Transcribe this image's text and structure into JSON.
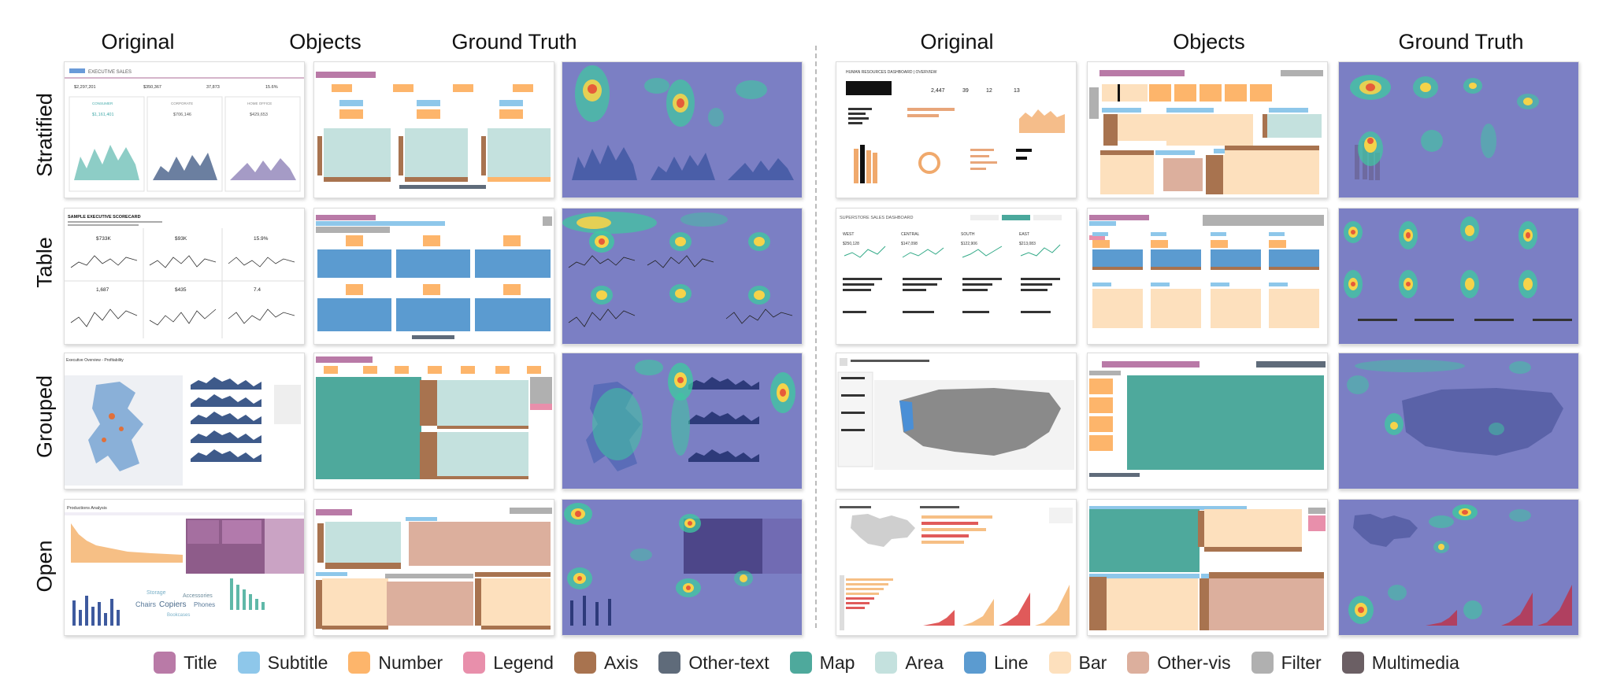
{
  "columns": [
    "Original",
    "Objects",
    "Ground Truth",
    "Original",
    "Objects",
    "Ground Truth"
  ],
  "rows": [
    "Stratified",
    "Table",
    "Grouped",
    "Open"
  ],
  "legend": [
    {
      "label": "Title",
      "color": "#b97aa7"
    },
    {
      "label": "Subtitle",
      "color": "#8ec7ea"
    },
    {
      "label": "Number",
      "color": "#fdb56b"
    },
    {
      "label": "Legend",
      "color": "#e88fab"
    },
    {
      "label": "Axis",
      "color": "#a8734f"
    },
    {
      "label": "Other-text",
      "color": "#5f6b7a"
    },
    {
      "label": "Map",
      "color": "#4ea99c"
    },
    {
      "label": "Area",
      "color": "#c4e1de"
    },
    {
      "label": "Line",
      "color": "#5b9bd0"
    },
    {
      "label": "Bar",
      "color": "#fde0bd"
    },
    {
      "label": "Other-vis",
      "color": "#dcaf9d"
    },
    {
      "label": "Filter",
      "color": "#b0b0b0"
    },
    {
      "label": "Multimedia",
      "color": "#6b5f64"
    }
  ],
  "thumbnail_text": {
    "s_left_title": "EXECUTIVE SALES",
    "s_left_n1": "$2,297,201",
    "s_left_n2": "$350,367",
    "s_left_n3": "37,873",
    "s_left_n4": "15.6%",
    "s_left_c1": "CONSUMER",
    "s_left_c2": "CORPORATE",
    "s_left_c3": "HOME OFFICE",
    "s_left_v1": "$1,161,401",
    "s_left_v2": "$706,146",
    "s_left_v3": "$429,653",
    "s_right_title": "HUMAN RESOURCES DASHBOARD | OVERVIEW",
    "s_right_n1": "2,447",
    "s_right_n2": "39",
    "s_right_n3": "12",
    "s_right_n4": "13",
    "t_left_title": "SAMPLE EXECUTIVE SCORECARD",
    "t_left_n1": "$733K",
    "t_left_n2": "$93K",
    "t_left_n3": "15.9%",
    "t_left_n4": "1,687",
    "t_left_n5": "$435",
    "t_left_n6": "7.4",
    "t_right_title": "SUPERSTORE SALES DASHBOARD",
    "t_right_r1": "WEST",
    "t_right_r2": "CENTRAL",
    "t_right_r3": "SOUTH",
    "t_right_r4": "EAST",
    "t_right_v1": "$250,128",
    "t_right_v2": "$147,098",
    "t_right_v3": "$122,906",
    "t_right_v4": "$213,083",
    "g_left_title": "Executive Overview - Profitability",
    "o_left_title": "Productions Analysis",
    "o_left_w1": "Storage",
    "o_left_w2": "Accessories",
    "o_left_w3": "Chairs",
    "o_left_w4": "Copiers",
    "o_left_w5": "Phones",
    "o_left_w6": "Bookcases"
  }
}
